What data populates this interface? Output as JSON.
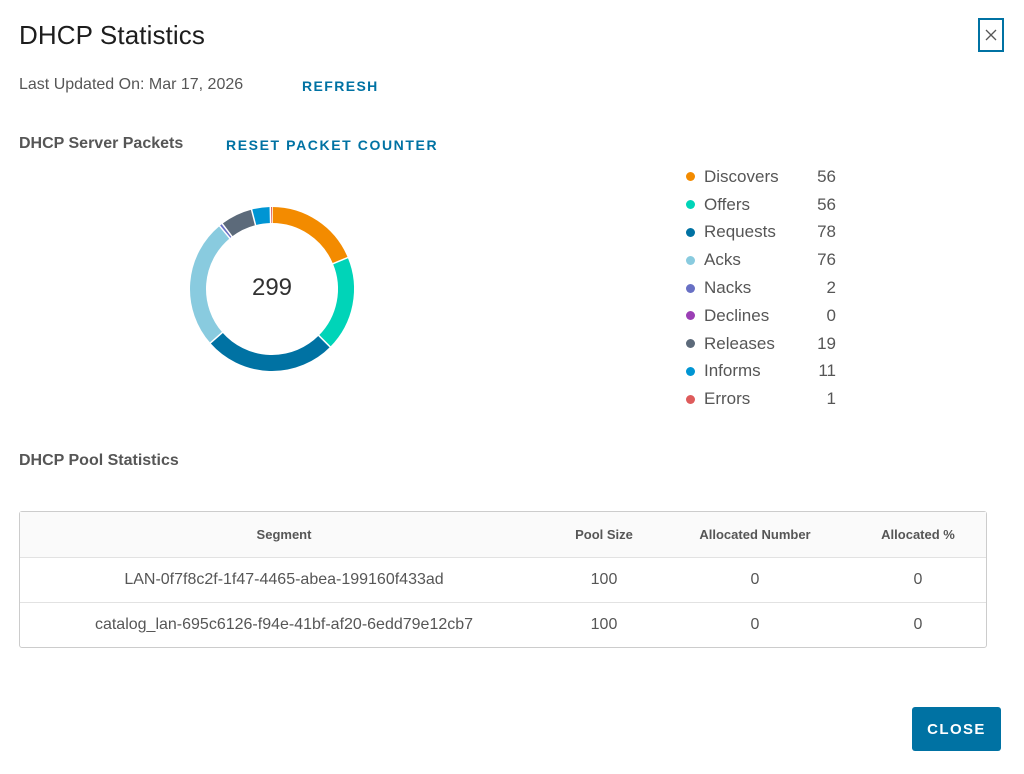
{
  "dialog": {
    "title": "DHCP Statistics",
    "last_updated": "Last Updated On: Mar 17, 2026",
    "refresh_label": "REFRESH",
    "close_label": "CLOSE"
  },
  "packets": {
    "heading": "DHCP Server Packets",
    "reset_label": "RESET PACKET COUNTER",
    "total": "299"
  },
  "chart_data": {
    "type": "pie",
    "categories": [
      "Discovers",
      "Offers",
      "Requests",
      "Acks",
      "Nacks",
      "Declines",
      "Releases",
      "Informs",
      "Errors"
    ],
    "values": [
      56,
      56,
      78,
      76,
      2,
      0,
      19,
      11,
      1
    ],
    "colors": [
      "#f38b00",
      "#00d4b8",
      "#0072a3",
      "#89cbdf",
      "#6870c4",
      "#9b3fb5",
      "#5c6a7a",
      "#0095d3",
      "#de5b5b"
    ],
    "legend": "right"
  },
  "legend_items": [
    {
      "label": "Discovers",
      "value": "56",
      "color": "#f38b00"
    },
    {
      "label": "Offers",
      "value": "56",
      "color": "#00d4b8"
    },
    {
      "label": "Requests",
      "value": "78",
      "color": "#0072a3"
    },
    {
      "label": "Acks",
      "value": "76",
      "color": "#89cbdf"
    },
    {
      "label": "Nacks",
      "value": "2",
      "color": "#6870c4"
    },
    {
      "label": "Declines",
      "value": "0",
      "color": "#9b3fb5"
    },
    {
      "label": "Releases",
      "value": "19",
      "color": "#5c6a7a"
    },
    {
      "label": "Informs",
      "value": "11",
      "color": "#0095d3"
    },
    {
      "label": "Errors",
      "value": "1",
      "color": "#de5b5b"
    }
  ],
  "pool": {
    "heading": "DHCP Pool Statistics",
    "columns": [
      "Segment",
      "Pool Size",
      "Allocated Number",
      "Allocated %"
    ],
    "rows": [
      [
        "LAN-0f7f8c2f-1f47-4465-abea-199160f433ad",
        "100",
        "0",
        "0"
      ],
      [
        "catalog_lan-695c6126-f94e-41bf-af20-6edd79e12cb7",
        "100",
        "0",
        "0"
      ]
    ]
  },
  "icons": {
    "close": "close-icon"
  }
}
